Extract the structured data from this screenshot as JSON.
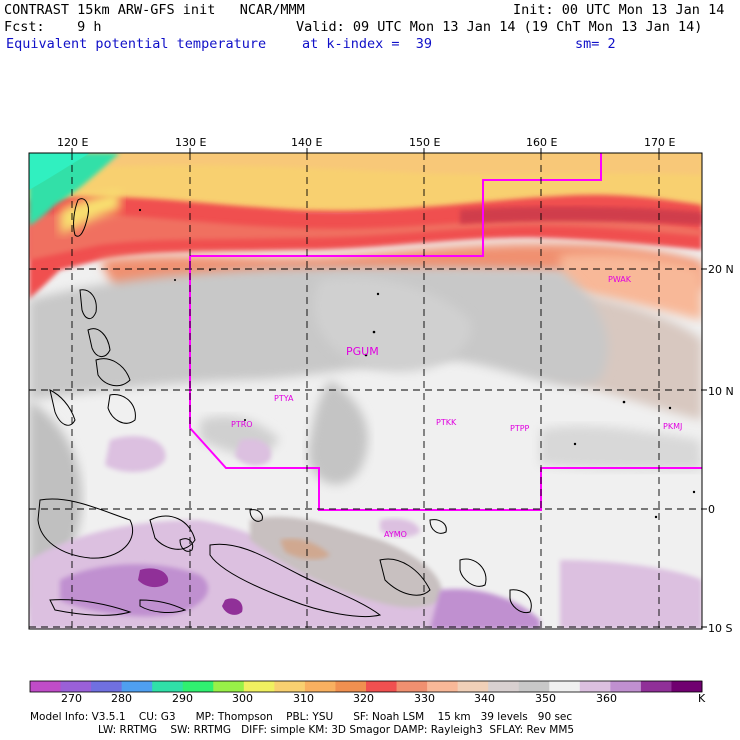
{
  "header": {
    "line1_left": "CONTRAST 15km ARW-GFS init   NCAR/MMM",
    "line1_right": "Init: 00 UTC Mon 13 Jan 14",
    "line2_left": "Fcst:    9 h",
    "line2_right": "Valid: 09 UTC Mon 13 Jan 14 (19 ChT Mon 13 Jan 14)",
    "line3_left": "Equivalent potential temperature",
    "line3_mid": "at k-index =  39",
    "line3_right": "sm= 2"
  },
  "map": {
    "lon_labels": [
      "120 E",
      "130 E",
      "140 E",
      "150 E",
      "160 E",
      "170 E"
    ],
    "lat_labels": [
      "20 N",
      "10 N",
      "0",
      "10 S"
    ],
    "stations": [
      "PGUM",
      "PWAK",
      "PTYA",
      "PTRO",
      "PTKK",
      "PTPP",
      "PKMJ",
      "AYMO"
    ],
    "boundary_color": "#ff00ff"
  },
  "colorbar": {
    "labels": [
      "270",
      "280",
      "290",
      "300",
      "310",
      "320",
      "330",
      "340",
      "350",
      "360"
    ],
    "unit": "K",
    "colors": [
      "#c04cc8",
      "#9a60d8",
      "#7070e0",
      "#4f9ff0",
      "#30e0a8",
      "#30f070",
      "#98f048",
      "#f0f060",
      "#f8d070",
      "#f8b060",
      "#f09050",
      "#f05050",
      "#f09070",
      "#f8b898",
      "#f0d0b8",
      "#d8d0d0",
      "#c8c8c8",
      "#f0f0f0",
      "#dcc0e0",
      "#c090d0",
      "#903098",
      "#700070"
    ]
  },
  "model_info": {
    "line1": "Model Info: V3.5.1    CU: G3      MP: Thompson    PBL: YSU      SF: Noah LSM    15 km   39 levels   90 sec",
    "line2": "LW: RRTMG    SW: RRTMG   DIFF: simple KM: 3D Smagor DAMP: Rayleigh3  SFLAY: Rev MM5"
  }
}
